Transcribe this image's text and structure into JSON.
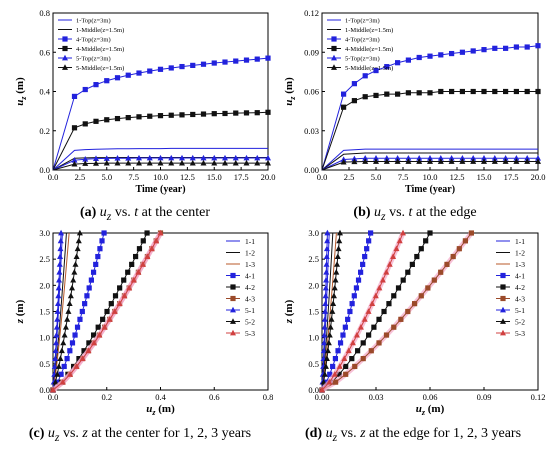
{
  "captions": [
    {
      "label": "(a)",
      "pre": "",
      "var": "u",
      "sub": "z",
      "mid": " vs. ",
      "var2": "t",
      "post": " at the center"
    },
    {
      "label": "(b)",
      "pre": "",
      "var": "u",
      "sub": "z",
      "mid": " vs. ",
      "var2": "t",
      "post": " at the edge"
    },
    {
      "label": "(c)",
      "pre": "",
      "var": "u",
      "sub": "z",
      "mid": " vs. ",
      "var2": "z",
      "post": " at the center for 1, 2, 3 years"
    },
    {
      "label": "(d)",
      "pre": "",
      "var": "u",
      "sub": "z",
      "mid": " vs. ",
      "var2": "z",
      "post": " at the edge for 1, 2, 3 years"
    }
  ],
  "chart_data": [
    {
      "type": "line",
      "xlabel": "Time (year)",
      "ylabel_main": "u",
      "ylabel_sub": "z",
      "ylabel_unit": " (m)",
      "xlim": [
        0,
        20
      ],
      "ylim": [
        0,
        0.8
      ],
      "xticks": [
        "0.0",
        "2.5",
        "5.0",
        "7.5",
        "10.0",
        "12.5",
        "15.0",
        "17.5",
        "20.0"
      ],
      "yticks": [
        "0.0",
        "0.2",
        "0.4",
        "0.6",
        "0.8"
      ],
      "legend": "top-left",
      "colors": {
        "blue": "#2222dd",
        "black": "#111111"
      },
      "x": [
        2,
        3,
        4,
        5,
        6,
        7,
        8,
        9,
        10,
        11,
        12,
        13,
        14,
        15,
        16,
        17,
        18,
        19,
        20
      ],
      "series": [
        {
          "name": "1-Top(z=3m)",
          "color": "#2222dd",
          "marker": "none",
          "values": [
            0.1,
            0.104,
            0.106,
            0.107,
            0.108,
            0.108,
            0.109,
            0.109,
            0.109,
            0.11,
            0.11,
            0.11,
            0.11,
            0.11,
            0.11,
            0.11,
            0.11,
            0.11,
            0.11
          ]
        },
        {
          "name": "1-Middle(z=1.5m)",
          "color": "#111111",
          "marker": "none",
          "values": [
            0.06,
            0.062,
            0.063,
            0.063,
            0.064,
            0.064,
            0.064,
            0.064,
            0.064,
            0.064,
            0.064,
            0.064,
            0.064,
            0.064,
            0.064,
            0.064,
            0.064,
            0.064,
            0.064
          ]
        },
        {
          "name": "4-Top(z=3m)",
          "color": "#2222dd",
          "marker": "square",
          "values": [
            0.375,
            0.41,
            0.435,
            0.455,
            0.47,
            0.483,
            0.494,
            0.504,
            0.513,
            0.52,
            0.527,
            0.533,
            0.539,
            0.545,
            0.55,
            0.555,
            0.56,
            0.565,
            0.57
          ]
        },
        {
          "name": "4-Middle(z=1.5m)",
          "color": "#111111",
          "marker": "square",
          "values": [
            0.215,
            0.235,
            0.248,
            0.256,
            0.262,
            0.267,
            0.271,
            0.274,
            0.277,
            0.279,
            0.281,
            0.283,
            0.285,
            0.287,
            0.288,
            0.29,
            0.291,
            0.292,
            0.294
          ]
        },
        {
          "name": "5-Top(z=3m)",
          "color": "#2222dd",
          "marker": "triangle",
          "values": [
            0.05,
            0.055,
            0.058,
            0.059,
            0.06,
            0.06,
            0.061,
            0.061,
            0.061,
            0.061,
            0.061,
            0.061,
            0.061,
            0.061,
            0.061,
            0.061,
            0.061,
            0.061,
            0.061
          ]
        },
        {
          "name": "5-Middle(z=1.5m)",
          "color": "#111111",
          "marker": "triangle",
          "values": [
            0.03,
            0.033,
            0.034,
            0.035,
            0.035,
            0.035,
            0.035,
            0.035,
            0.035,
            0.035,
            0.035,
            0.035,
            0.035,
            0.035,
            0.035,
            0.035,
            0.035,
            0.035,
            0.035
          ]
        }
      ]
    },
    {
      "type": "line",
      "xlabel": "Time (year)",
      "ylabel_main": "u",
      "ylabel_sub": "z",
      "ylabel_unit": " (m)",
      "xlim": [
        0,
        20
      ],
      "ylim": [
        0,
        0.12
      ],
      "xticks": [
        "0.0",
        "2.5",
        "5.0",
        "7.5",
        "10.0",
        "12.5",
        "15.0",
        "17.5",
        "20.0"
      ],
      "yticks": [
        "0.00",
        "0.03",
        "0.06",
        "0.09",
        "0.12"
      ],
      "legend": "top-left",
      "colors": {
        "blue": "#2222dd",
        "black": "#111111"
      },
      "x": [
        2,
        3,
        4,
        5,
        6,
        7,
        8,
        9,
        10,
        11,
        12,
        13,
        14,
        15,
        16,
        17,
        18,
        19,
        20
      ],
      "series": [
        {
          "name": "1-Top(z=3m)",
          "color": "#2222dd",
          "marker": "none",
          "values": [
            0.015,
            0.0155,
            0.016,
            0.016,
            0.016,
            0.016,
            0.016,
            0.016,
            0.016,
            0.016,
            0.016,
            0.016,
            0.016,
            0.016,
            0.016,
            0.016,
            0.016,
            0.016,
            0.016
          ]
        },
        {
          "name": "1-Middle(z=1.5m)",
          "color": "#111111",
          "marker": "none",
          "values": [
            0.012,
            0.0125,
            0.013,
            0.013,
            0.013,
            0.013,
            0.013,
            0.013,
            0.013,
            0.013,
            0.013,
            0.013,
            0.013,
            0.013,
            0.013,
            0.013,
            0.013,
            0.013,
            0.013
          ]
        },
        {
          "name": "4-Top(z=3m)",
          "color": "#2222dd",
          "marker": "square",
          "values": [
            0.058,
            0.066,
            0.072,
            0.076,
            0.079,
            0.082,
            0.084,
            0.086,
            0.087,
            0.088,
            0.089,
            0.09,
            0.091,
            0.092,
            0.093,
            0.093,
            0.094,
            0.094,
            0.095
          ]
        },
        {
          "name": "4-Middle(z=1.5m)",
          "color": "#111111",
          "marker": "square",
          "values": [
            0.048,
            0.053,
            0.056,
            0.057,
            0.058,
            0.058,
            0.059,
            0.059,
            0.059,
            0.06,
            0.06,
            0.06,
            0.06,
            0.06,
            0.06,
            0.06,
            0.06,
            0.06,
            0.06
          ]
        },
        {
          "name": "5-Top(z=3m)",
          "color": "#2222dd",
          "marker": "triangle",
          "values": [
            0.008,
            0.0085,
            0.009,
            0.009,
            0.009,
            0.009,
            0.009,
            0.009,
            0.009,
            0.009,
            0.009,
            0.009,
            0.009,
            0.009,
            0.009,
            0.009,
            0.009,
            0.009,
            0.009
          ]
        },
        {
          "name": "5-Middle(z=1.5m)",
          "color": "#111111",
          "marker": "triangle",
          "values": [
            0.006,
            0.0063,
            0.0065,
            0.0065,
            0.0065,
            0.0065,
            0.0065,
            0.0065,
            0.0065,
            0.0065,
            0.0065,
            0.0065,
            0.0065,
            0.0065,
            0.0065,
            0.0065,
            0.0065,
            0.0065,
            0.0065
          ]
        }
      ]
    },
    {
      "type": "line",
      "orientation": "profile",
      "xlabel_main": "u",
      "xlabel_sub": "z",
      "xlabel_unit": " (m)",
      "ylabel": "z (m)",
      "xlim": [
        0,
        0.8
      ],
      "ylim": [
        0,
        3.0
      ],
      "xticks": [
        "0.0",
        "0.2",
        "0.4",
        "0.6",
        "0.8"
      ],
      "yticks": [
        "0.0",
        "0.5",
        "1.0",
        "1.5",
        "2.0",
        "2.5",
        "3.0"
      ],
      "legend": "right",
      "z": [
        0.0,
        0.15,
        0.3,
        0.45,
        0.6,
        0.75,
        0.9,
        1.05,
        1.2,
        1.35,
        1.5,
        1.65,
        1.8,
        1.95,
        2.1,
        2.25,
        2.4,
        2.55,
        2.7,
        2.85,
        3.0
      ],
      "series": [
        {
          "name": "1-1",
          "color": "#2222dd",
          "marker": "none",
          "top": 0.035
        },
        {
          "name": "1-2",
          "color": "#111111",
          "marker": "none",
          "top": 0.05
        },
        {
          "name": "1-3",
          "color": "#b85a2a",
          "marker": "none",
          "top": 0.06
        },
        {
          "name": "4-1",
          "color": "#2222dd",
          "marker": "square",
          "top": 0.19
        },
        {
          "name": "4-2",
          "color": "#111111",
          "marker": "square",
          "top": 0.35
        },
        {
          "name": "4-3",
          "color": "#9b4a2a",
          "marker": "square",
          "top": 0.4
        },
        {
          "name": "5-1",
          "color": "#2222dd",
          "marker": "triangle",
          "top": 0.03
        },
        {
          "name": "5-2",
          "color": "#111111",
          "marker": "triangle",
          "top": 0.1
        },
        {
          "name": "5-3",
          "color": "#d04040",
          "marker": "triangle",
          "top": 0.4
        }
      ]
    },
    {
      "type": "line",
      "orientation": "profile",
      "xlabel_main": "u",
      "xlabel_sub": "z",
      "xlabel_unit": " (m)",
      "ylabel": "z (m)",
      "xlim": [
        0,
        0.12
      ],
      "ylim": [
        0,
        3.0
      ],
      "xticks": [
        "0.00",
        "0.03",
        "0.06",
        "0.09",
        "0.12"
      ],
      "yticks": [
        "0.0",
        "0.5",
        "1.0",
        "1.5",
        "2.0",
        "2.5",
        "3.0"
      ],
      "legend": "right",
      "z": [
        0.0,
        0.15,
        0.3,
        0.45,
        0.6,
        0.75,
        0.9,
        1.05,
        1.2,
        1.35,
        1.5,
        1.65,
        1.8,
        1.95,
        2.1,
        2.25,
        2.4,
        2.55,
        2.7,
        2.85,
        3.0
      ],
      "series": [
        {
          "name": "1-1",
          "color": "#2222dd",
          "marker": "none",
          "top": 0.004
        },
        {
          "name": "1-2",
          "color": "#111111",
          "marker": "none",
          "top": 0.006
        },
        {
          "name": "1-3",
          "color": "#b85a2a",
          "marker": "none",
          "top": 0.008
        },
        {
          "name": "4-1",
          "color": "#2222dd",
          "marker": "square",
          "top": 0.027
        },
        {
          "name": "4-2",
          "color": "#111111",
          "marker": "square",
          "top": 0.06
        },
        {
          "name": "4-3",
          "color": "#9b4a2a",
          "marker": "square",
          "top": 0.083
        },
        {
          "name": "5-1",
          "color": "#2222dd",
          "marker": "triangle",
          "top": 0.003
        },
        {
          "name": "5-2",
          "color": "#111111",
          "marker": "triangle",
          "top": 0.01
        },
        {
          "name": "5-3",
          "color": "#d04040",
          "marker": "triangle",
          "top": 0.045
        }
      ]
    }
  ]
}
